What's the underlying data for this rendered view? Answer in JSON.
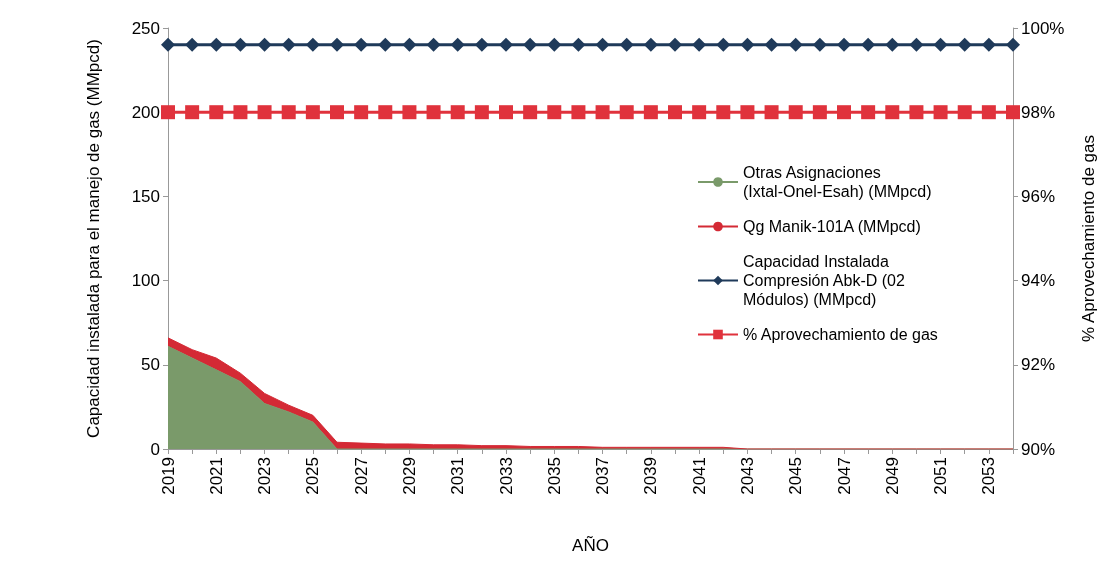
{
  "chart_data": {
    "type": "area",
    "stacked": true,
    "xlabel": "AÑO",
    "ylabel": "Capacidad instalada para el manejo de gas (MMpcd)",
    "y2label": "% Aprovechamiento de gas",
    "categories": [
      "2019",
      null,
      "2021",
      null,
      "2023",
      null,
      "2025",
      null,
      "2027",
      null,
      "2029",
      null,
      "2031",
      null,
      "2033",
      null,
      "2035",
      null,
      "2037",
      null,
      "2039",
      null,
      "2041",
      null,
      "2043",
      null,
      "2045",
      null,
      "2047",
      null,
      "2049",
      null,
      "2051",
      null,
      "2053",
      null
    ],
    "series": [
      {
        "name": "Otras Asignaciones (Ixtal-Onel-Esah) (MMpcd)",
        "color": "#7a9a6a",
        "values": [
          61,
          54,
          47,
          40,
          27,
          22,
          16,
          0,
          0,
          0,
          0,
          0,
          0,
          0,
          0,
          0,
          0,
          0,
          0,
          0,
          0,
          0,
          0,
          0,
          0,
          0,
          0,
          0,
          0,
          0,
          0,
          0,
          0,
          0,
          0,
          0
        ]
      },
      {
        "name": "Qg Manik-101A (MMpcd)",
        "color": "#d42a35",
        "values": [
          5,
          5,
          7,
          5,
          6,
          4,
          4,
          4,
          3.5,
          3,
          3,
          2.5,
          2.5,
          2,
          2,
          1.5,
          1.5,
          1.5,
          1,
          1,
          1,
          1,
          1,
          1,
          0,
          0,
          0,
          0,
          0,
          0,
          0,
          0,
          0,
          0,
          0,
          0
        ]
      },
      {
        "name": "Capacidad Instalada Compresión Abk-D (02 Módulos) (MMpcd)",
        "type": "line",
        "marker": "diamond",
        "color": "#1f3a5a",
        "values": [
          240,
          240,
          240,
          240,
          240,
          240,
          240,
          240,
          240,
          240,
          240,
          240,
          240,
          240,
          240,
          240,
          240,
          240,
          240,
          240,
          240,
          240,
          240,
          240,
          240,
          240,
          240,
          240,
          240,
          240,
          240,
          240,
          240,
          240,
          240,
          240
        ]
      },
      {
        "name": "% Aprovechamiento de gas",
        "type": "line",
        "marker": "square",
        "axis": "y2",
        "color": "#e0323c",
        "values": [
          98,
          98,
          98,
          98,
          98,
          98,
          98,
          98,
          98,
          98,
          98,
          98,
          98,
          98,
          98,
          98,
          98,
          98,
          98,
          98,
          98,
          98,
          98,
          98,
          98,
          98,
          98,
          98,
          98,
          98,
          98,
          98,
          98,
          98,
          98,
          98
        ]
      }
    ],
    "ylim": [
      0,
      250
    ],
    "yticks": [
      0,
      50,
      100,
      150,
      200,
      250
    ],
    "y2lim": [
      90,
      100
    ],
    "y2ticks": [
      {
        "value": 90,
        "label": "90%"
      },
      {
        "value": 92,
        "label": "92%"
      },
      {
        "value": 94,
        "label": "94%"
      },
      {
        "value": 96,
        "label": "96%"
      },
      {
        "value": 98,
        "label": "98%"
      },
      {
        "value": 100,
        "label": "100%"
      }
    ],
    "grid": false,
    "legend": "right"
  }
}
